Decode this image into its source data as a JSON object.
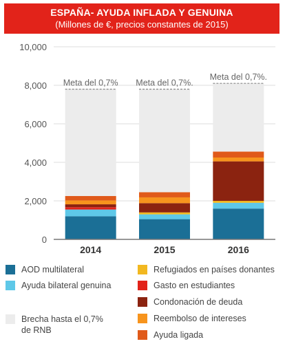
{
  "header": {
    "title": "ESPAÑA- AYUDA INFLADA Y GENUINA",
    "subtitle": "(Millones de €, precios constantes de 2015)"
  },
  "chart_data": {
    "type": "bar",
    "stacked": true,
    "categories": [
      "2014",
      "2015",
      "2016"
    ],
    "ylim": [
      0,
      10000
    ],
    "yticks": [
      "0",
      "2,000",
      "4,000",
      "6,000",
      "8,000",
      "10,000"
    ],
    "grid": true,
    "target_label": "Meta del 0,7%",
    "target_labels": [
      "Meta del 0,7%",
      "Meta del 0,7%.",
      "Meta del 0,7%."
    ],
    "target_values": [
      7800,
      7800,
      8100
    ],
    "series": [
      {
        "name": "AOD multilateral",
        "color": "#1b6f96",
        "values": [
          1200,
          1050,
          1600
        ]
      },
      {
        "name": "Ayuda bilateral genuina",
        "color": "#5ec8e8",
        "values": [
          350,
          250,
          300
        ]
      },
      {
        "name": "Refugiados en países donantes",
        "color": "#f2b820",
        "values": [
          0,
          100,
          100
        ]
      },
      {
        "name": "Gasto en estudiantes",
        "color": "#e2231a",
        "values": [
          120,
          0,
          0
        ]
      },
      {
        "name": "Condonación de deuda",
        "color": "#8b2310",
        "values": [
          150,
          480,
          2050
        ]
      },
      {
        "name": "Reembolso de intereses",
        "color": "#f7941d",
        "values": [
          200,
          300,
          200
        ]
      },
      {
        "name": "Ayuda ligada",
        "color": "#e05a1a",
        "values": [
          230,
          270,
          310
        ]
      },
      {
        "name": "Brecha hasta el 0,7%\nde RNB",
        "color": "#ececec",
        "values": [
          5550,
          5350,
          3540
        ]
      }
    ]
  },
  "legend": [
    {
      "label": "AOD multilateral",
      "color": "#1b6f96"
    },
    {
      "label": "Ayuda bilateral genuina",
      "color": "#5ec8e8"
    },
    {
      "label": "Brecha hasta el 0,7%\nde RNB",
      "color": "#ececec"
    },
    {
      "label": "Refugiados en países donantes",
      "color": "#f2b820"
    },
    {
      "label": "Gasto en estudiantes",
      "color": "#e2231a"
    },
    {
      "label": "Condonación de deuda",
      "color": "#8b2310"
    },
    {
      "label": "Reembolso de intereses",
      "color": "#f7941d"
    },
    {
      "label": "Ayuda ligada",
      "color": "#e05a1a"
    }
  ]
}
